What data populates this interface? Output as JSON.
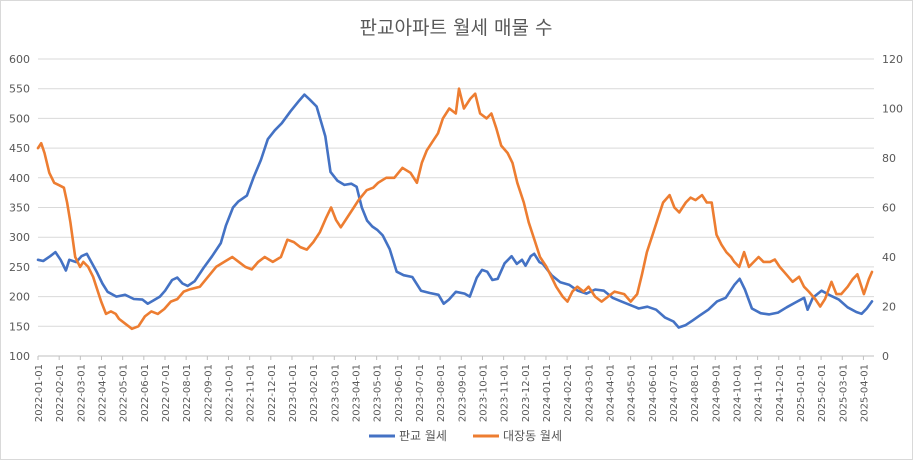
{
  "chart_data": {
    "type": "line",
    "title": "판교아파트 월세 매물 수",
    "xlabel": "",
    "ylabel": "",
    "y_left": {
      "min": 100,
      "max": 600,
      "ticks": [
        "600",
        "550",
        "500",
        "450",
        "400",
        "350",
        "300",
        "250",
        "200",
        "150",
        "100"
      ]
    },
    "y_right": {
      "min": 0,
      "max": 120,
      "ticks": [
        "120",
        "100",
        "80",
        "60",
        "40",
        "20",
        "0"
      ]
    },
    "x_ticks": [
      "2022-01-01",
      "2022-02-01",
      "2022-03-01",
      "2022-04-01",
      "2022-05-01",
      "2022-06-01",
      "2022-07-01",
      "2022-08-01",
      "2022-09-01",
      "2022-10-01",
      "2022-11-01",
      "2022-12-01",
      "2023-01-01",
      "2023-02-01",
      "2023-03-01",
      "2023-04-01",
      "2023-05-01",
      "2023-06-01",
      "2023-07-01",
      "2023-08-01",
      "2023-09-01",
      "2023-10-01",
      "2023-11-01",
      "2023-12-01",
      "2024-01-01",
      "2024-02-01",
      "2024-03-01",
      "2024-04-01",
      "2024-05-01",
      "2024-06-01",
      "2024-07-01",
      "2024-08-01",
      "2024-09-01",
      "2024-10-01",
      "2024-11-01",
      "2024-12-01",
      "2025-01-01",
      "2025-02-01",
      "2025-03-01",
      "2025-04-01"
    ],
    "grid": true,
    "legend_position": "bottom",
    "series": [
      {
        "name": "판교 월세",
        "axis": "left",
        "color": "#4472C4",
        "points": [
          [
            0,
            262
          ],
          [
            0.3,
            260
          ],
          [
            0.7,
            268
          ],
          [
            1,
            275
          ],
          [
            1.3,
            262
          ],
          [
            1.6,
            244
          ],
          [
            1.8,
            262
          ],
          [
            2.2,
            258
          ],
          [
            2.5,
            268
          ],
          [
            2.8,
            272
          ],
          [
            3.1,
            256
          ],
          [
            3.4,
            240
          ],
          [
            3.7,
            222
          ],
          [
            4,
            208
          ],
          [
            4.5,
            200
          ],
          [
            5,
            203
          ],
          [
            5.5,
            196
          ],
          [
            6,
            195
          ],
          [
            6.3,
            188
          ],
          [
            6.6,
            193
          ],
          [
            7,
            200
          ],
          [
            7.3,
            210
          ],
          [
            7.7,
            228
          ],
          [
            8,
            232
          ],
          [
            8.3,
            222
          ],
          [
            8.6,
            218
          ],
          [
            9,
            226
          ],
          [
            9.5,
            248
          ],
          [
            10,
            268
          ],
          [
            10.5,
            290
          ],
          [
            10.8,
            320
          ],
          [
            11.2,
            350
          ],
          [
            11.5,
            360
          ],
          [
            12,
            370
          ],
          [
            12.4,
            402
          ],
          [
            12.8,
            430
          ],
          [
            13.2,
            465
          ],
          [
            13.6,
            480
          ],
          [
            14,
            492
          ],
          [
            14.5,
            512
          ],
          [
            15,
            530
          ],
          [
            15.3,
            540
          ],
          [
            15.6,
            532
          ],
          [
            16,
            520
          ],
          [
            16.5,
            470
          ],
          [
            16.8,
            410
          ],
          [
            17.2,
            395
          ],
          [
            17.6,
            388
          ],
          [
            18,
            390
          ],
          [
            18.3,
            385
          ],
          [
            18.6,
            350
          ],
          [
            18.9,
            328
          ],
          [
            19.2,
            318
          ],
          [
            19.5,
            312
          ],
          [
            19.8,
            303
          ],
          [
            20.2,
            280
          ],
          [
            20.6,
            242
          ],
          [
            21,
            236
          ],
          [
            21.5,
            233
          ],
          [
            22,
            210
          ],
          [
            22.5,
            206
          ],
          [
            23,
            203
          ],
          [
            23.3,
            188
          ],
          [
            23.6,
            195
          ],
          [
            24,
            208
          ],
          [
            24.5,
            205
          ],
          [
            24.8,
            200
          ],
          [
            25.2,
            232
          ],
          [
            25.5,
            245
          ],
          [
            25.8,
            242
          ],
          [
            26.1,
            228
          ],
          [
            26.4,
            230
          ],
          [
            26.8,
            256
          ],
          [
            27.2,
            268
          ],
          [
            27.5,
            255
          ],
          [
            27.8,
            262
          ],
          [
            28,
            252
          ],
          [
            28.3,
            268
          ],
          [
            28.5,
            272
          ],
          [
            28.8,
            258
          ],
          [
            29,
            255
          ],
          [
            29.5,
            236
          ],
          [
            30,
            224
          ],
          [
            30.5,
            220
          ],
          [
            31,
            210
          ],
          [
            31.5,
            205
          ],
          [
            32,
            212
          ],
          [
            32.5,
            210
          ],
          [
            33,
            198
          ],
          [
            33.5,
            192
          ],
          [
            34,
            186
          ],
          [
            34.5,
            180
          ],
          [
            35,
            183
          ],
          [
            35.5,
            178
          ],
          [
            36,
            165
          ],
          [
            36.5,
            158
          ],
          [
            36.8,
            148
          ],
          [
            37.2,
            152
          ],
          [
            37.6,
            160
          ],
          [
            38,
            168
          ],
          [
            38.5,
            178
          ],
          [
            39,
            192
          ],
          [
            39.5,
            198
          ],
          [
            40,
            220
          ],
          [
            40.3,
            230
          ],
          [
            40.6,
            212
          ],
          [
            41,
            180
          ],
          [
            41.5,
            172
          ],
          [
            42,
            170
          ],
          [
            42.5,
            173
          ],
          [
            43,
            182
          ],
          [
            43.5,
            190
          ],
          [
            44,
            198
          ],
          [
            44.2,
            178
          ],
          [
            44.5,
            198
          ],
          [
            45,
            210
          ],
          [
            45.5,
            202
          ],
          [
            46,
            195
          ],
          [
            46.5,
            182
          ],
          [
            47,
            174
          ],
          [
            47.3,
            171
          ],
          [
            47.6,
            180
          ],
          [
            47.9,
            192
          ]
        ]
      },
      {
        "name": "대장동 월세",
        "axis": "right",
        "color": "#ED7D31",
        "points": [
          [
            0,
            84
          ],
          [
            0.2,
            86
          ],
          [
            0.4,
            82
          ],
          [
            0.7,
            74
          ],
          [
            1,
            70
          ],
          [
            1.3,
            69
          ],
          [
            1.6,
            68
          ],
          [
            1.8,
            62
          ],
          [
            2,
            54
          ],
          [
            2.3,
            40
          ],
          [
            2.6,
            36
          ],
          [
            2.8,
            38
          ],
          [
            3.1,
            36
          ],
          [
            3.4,
            32
          ],
          [
            3.6,
            28
          ],
          [
            3.9,
            22
          ],
          [
            4.2,
            17
          ],
          [
            4.5,
            18
          ],
          [
            4.8,
            17
          ],
          [
            5,
            15
          ],
          [
            5.4,
            13
          ],
          [
            5.8,
            11
          ],
          [
            6.2,
            12
          ],
          [
            6.6,
            16
          ],
          [
            7,
            18
          ],
          [
            7.4,
            17
          ],
          [
            7.8,
            19
          ],
          [
            8.2,
            22
          ],
          [
            8.6,
            23
          ],
          [
            9,
            26
          ],
          [
            9.4,
            27
          ],
          [
            10,
            28
          ],
          [
            10.5,
            32
          ],
          [
            11,
            36
          ],
          [
            11.5,
            38
          ],
          [
            12,
            40
          ],
          [
            12.4,
            38
          ],
          [
            12.8,
            36
          ],
          [
            13.2,
            35
          ],
          [
            13.6,
            38
          ],
          [
            14,
            40
          ],
          [
            14.5,
            38
          ],
          [
            15,
            40
          ],
          [
            15.4,
            47
          ],
          [
            15.8,
            46
          ],
          [
            16.2,
            44
          ],
          [
            16.6,
            43
          ],
          [
            17,
            46
          ],
          [
            17.4,
            50
          ],
          [
            17.8,
            56
          ],
          [
            18.1,
            60
          ],
          [
            18.4,
            55
          ],
          [
            18.7,
            52
          ],
          [
            19,
            55
          ],
          [
            19.5,
            60
          ],
          [
            19.8,
            63
          ],
          [
            20.3,
            67
          ],
          [
            20.7,
            68
          ],
          [
            21,
            70
          ],
          [
            21.5,
            72
          ],
          [
            22,
            72
          ],
          [
            22.5,
            76
          ],
          [
            23,
            74
          ],
          [
            23.4,
            70
          ],
          [
            23.7,
            78
          ],
          [
            24,
            83
          ],
          [
            24.3,
            86
          ],
          [
            24.7,
            90
          ],
          [
            25,
            96
          ],
          [
            25.4,
            100
          ],
          [
            25.8,
            98
          ],
          [
            26,
            108
          ],
          [
            26.3,
            100
          ],
          [
            26.7,
            104
          ],
          [
            27,
            106
          ],
          [
            27.3,
            98
          ],
          [
            27.7,
            96
          ],
          [
            28,
            98
          ],
          [
            28.3,
            92
          ],
          [
            28.6,
            85
          ],
          [
            29,
            82
          ],
          [
            29.3,
            78
          ],
          [
            29.6,
            70
          ],
          [
            30,
            62
          ],
          [
            30.3,
            54
          ],
          [
            30.7,
            46
          ],
          [
            31,
            40
          ],
          [
            31.4,
            36
          ],
          [
            31.7,
            32
          ],
          [
            32,
            28
          ],
          [
            32.4,
            24
          ],
          [
            32.7,
            22
          ],
          [
            33,
            26
          ],
          [
            33.3,
            28
          ],
          [
            33.7,
            26
          ],
          [
            34,
            28
          ],
          [
            34.4,
            24
          ],
          [
            34.8,
            22
          ],
          [
            35.2,
            24
          ],
          [
            35.6,
            26
          ],
          [
            36.2,
            25
          ],
          [
            36.6,
            22
          ],
          [
            37,
            25
          ],
          [
            37.3,
            33
          ],
          [
            37.6,
            42
          ],
          [
            38,
            50
          ],
          [
            38.3,
            56
          ],
          [
            38.6,
            62
          ],
          [
            39,
            65
          ],
          [
            39.3,
            60
          ],
          [
            39.6,
            58
          ],
          [
            40,
            62
          ],
          [
            40.3,
            64
          ],
          [
            40.6,
            63
          ],
          [
            41,
            65
          ],
          [
            41.3,
            62
          ],
          [
            41.6,
            62
          ],
          [
            41.9,
            49
          ],
          [
            42.2,
            45
          ],
          [
            42.5,
            42
          ],
          [
            42.8,
            40
          ],
          [
            43,
            38
          ],
          [
            43.3,
            36
          ],
          [
            43.6,
            42
          ],
          [
            43.9,
            36
          ],
          [
            44.2,
            38
          ],
          [
            44.5,
            40
          ],
          [
            44.8,
            38
          ],
          [
            45.2,
            38
          ],
          [
            45.5,
            39
          ],
          [
            45.8,
            36
          ],
          [
            46.2,
            33
          ],
          [
            46.6,
            30
          ],
          [
            47,
            32
          ],
          [
            47.3,
            28
          ],
          [
            47.6,
            26
          ],
          [
            48,
            23
          ],
          [
            48.3,
            20
          ],
          [
            48.6,
            23
          ],
          [
            49,
            30
          ],
          [
            49.3,
            25
          ],
          [
            49.6,
            25
          ],
          [
            50,
            28
          ],
          [
            50.3,
            31
          ],
          [
            50.6,
            33
          ],
          [
            51,
            25
          ],
          [
            51.3,
            31
          ],
          [
            51.5,
            34
          ]
        ]
      }
    ]
  }
}
